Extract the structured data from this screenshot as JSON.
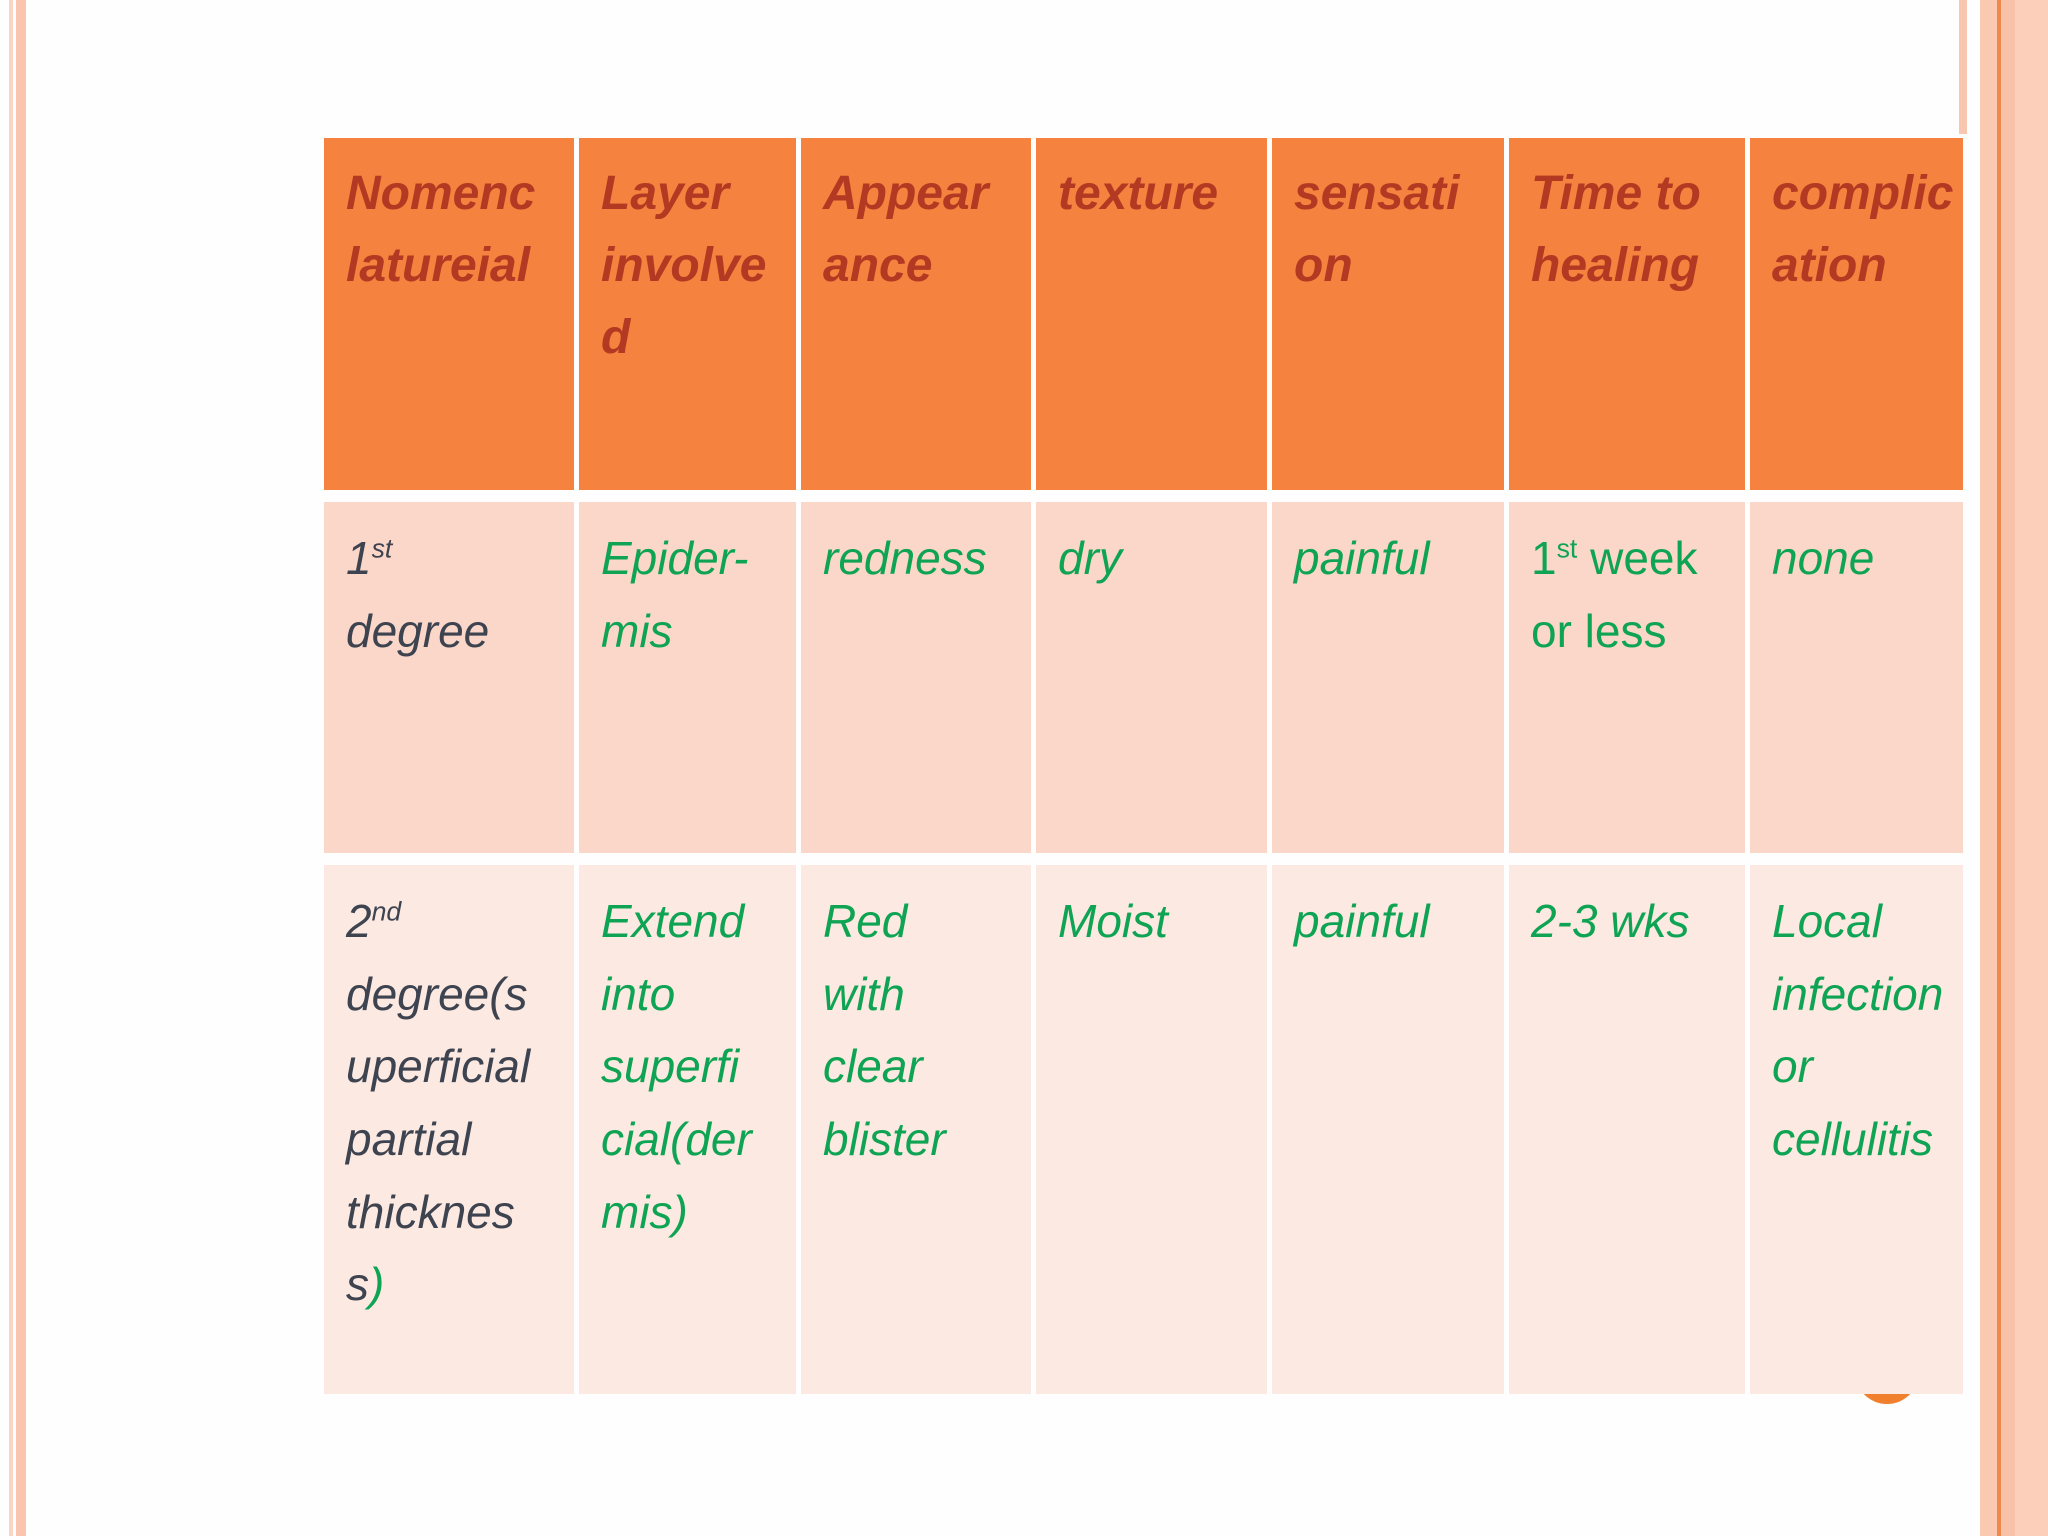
{
  "theme": {
    "header_bg": "#f5823e",
    "header_text": "#b33922",
    "row1_bg": "#fbd7ca",
    "row2_bg": "#fce9e2",
    "green_text": "#0fa454",
    "dark_text": "#3e4350",
    "border_stripe_pink": "#fac5ae",
    "border_stripe_light_pink": "#fbcfba",
    "border_accent_orange": "#ef8a4c",
    "circle_orange": "#f0802e",
    "page_bg": "#ffffff"
  },
  "table": {
    "headers": [
      {
        "text": "Nomenc\nlatureial"
      },
      {
        "text": "Layer\ninvolve\nd"
      },
      {
        "text": "Appear\nance"
      },
      {
        "text": "texture"
      },
      {
        "text": "sensati\non"
      },
      {
        "text": "Time to\nhealing"
      },
      {
        "text": "complic\nation"
      }
    ],
    "rows": [
      {
        "cells": [
          {
            "kind": "segments",
            "segments": [
              {
                "t": "1"
              },
              {
                "t": "st",
                "sup": true
              },
              {
                "t": "\ndegree"
              }
            ]
          },
          {
            "kind": "text",
            "text": "Epider-\nmis"
          },
          {
            "kind": "text",
            "text": "redness"
          },
          {
            "kind": "text",
            "text": "dry"
          },
          {
            "kind": "text",
            "text": "painful"
          },
          {
            "kind": "segments",
            "segments": [
              {
                "t": "1"
              },
              {
                "t": "st",
                "sup": true
              },
              {
                "t": " week\nor less"
              }
            ]
          },
          {
            "kind": "text",
            "text": "none"
          }
        ]
      },
      {
        "cells": [
          {
            "kind": "segments",
            "segments": [
              {
                "t": "2"
              },
              {
                "t": "nd",
                "sup": true
              },
              {
                "t": "\ndegree(s\nuperficial\npartial\nthicknes\ns"
              },
              {
                "t": ")",
                "green": true
              }
            ]
          },
          {
            "kind": "text",
            "text": "Extend\ninto\nsuperfi\ncial(der\nmis)"
          },
          {
            "kind": "text",
            "text": "Red\nwith\nclear\nblister"
          },
          {
            "kind": "text",
            "text": "Moist"
          },
          {
            "kind": "text",
            "text": "painful"
          },
          {
            "kind": "text",
            "text": "2-3 wks"
          },
          {
            "kind": "text",
            "text": "Local\ninfection\nor\ncellulitis"
          }
        ]
      }
    ]
  }
}
